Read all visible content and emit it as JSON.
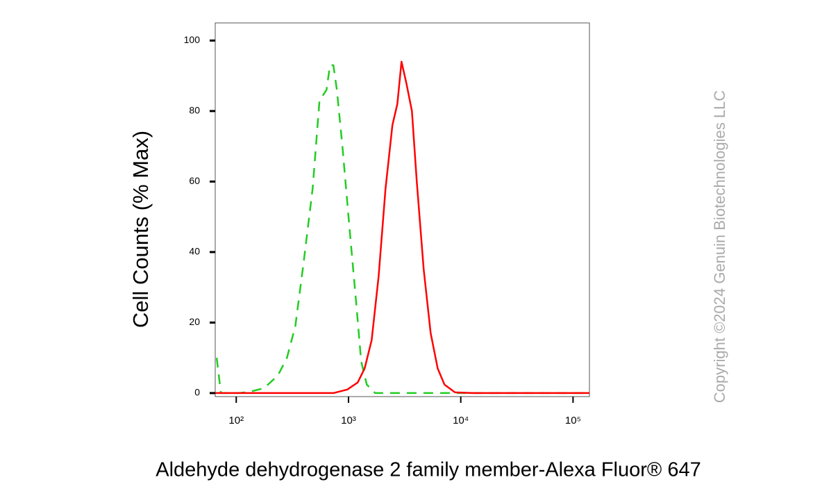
{
  "chart_data": {
    "type": "line",
    "xlabel": "Aldehyde dehydrogenase 2 family member-Alexa Fluor® 647",
    "ylabel": "Cell Counts (% Max)",
    "watermark": "Copyright ©2024 Genuin Biotechnologies LLC",
    "xscale": "log",
    "xlim": [
      65,
      140000
    ],
    "ylim": [
      -1,
      105
    ],
    "xticks": [
      {
        "value": 100,
        "label": "10²"
      },
      {
        "value": 1000,
        "label": "10³"
      },
      {
        "value": 10000,
        "label": "10⁴"
      },
      {
        "value": 100000,
        "label": "10⁵"
      }
    ],
    "yticks": [
      0,
      20,
      40,
      60,
      80,
      100
    ],
    "grid": false,
    "series": [
      {
        "color": "#22cc22",
        "linestyle": "dashed",
        "x": [
          67,
          73,
          107,
          133,
          177,
          235,
          283,
          336,
          398,
          479,
          552,
          637,
          684,
          734,
          788,
          883,
          1019,
          1175,
          1297,
          1455,
          1726,
          4055,
          16830,
          140000
        ],
        "values": [
          10,
          0,
          0,
          0.4,
          1.4,
          5,
          10,
          19,
          37,
          58,
          83,
          86,
          93,
          93,
          86,
          70,
          47,
          25,
          9,
          2.4,
          0,
          0,
          0,
          0
        ]
      },
      {
        "color": "#ff0000",
        "linestyle": "solid",
        "x": [
          65,
          479,
          734,
          976,
          1208,
          1393,
          1607,
          1853,
          2136,
          2461,
          2721,
          2965,
          3273,
          3672,
          4055,
          4677,
          5395,
          6223,
          7161,
          8872,
          12680,
          140000
        ],
        "values": [
          0,
          0,
          0,
          1,
          3,
          7,
          15,
          33,
          58,
          76,
          82,
          94,
          88,
          80,
          60,
          35,
          17,
          7,
          2.4,
          0.2,
          0,
          0
        ]
      }
    ]
  }
}
